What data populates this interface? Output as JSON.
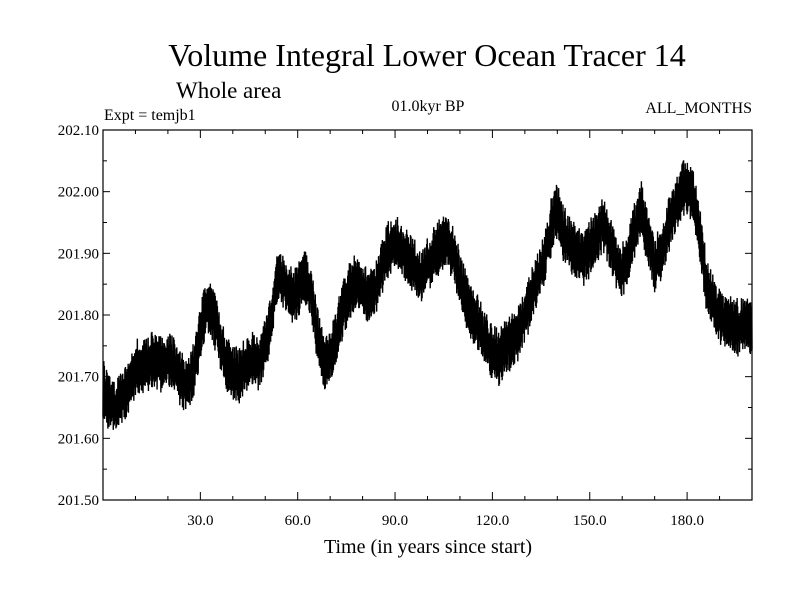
{
  "chart_data": {
    "type": "line",
    "title": "Volume Integral Lower Ocean Tracer 14",
    "subtitle": "Whole area",
    "header_left": "Expt = temjb1",
    "header_center": "01.0kyr BP",
    "header_right": "ALL_MONTHS",
    "xlabel": "Time (in years since start)",
    "ylabel": "",
    "xlim": [
      0,
      200
    ],
    "ylim": [
      201.5,
      202.1
    ],
    "x_ticks": [
      30,
      60,
      90,
      120,
      150,
      180
    ],
    "x_tick_labels": [
      "30.0",
      "60.0",
      "90.0",
      "120.0",
      "150.0",
      "180.0"
    ],
    "y_ticks": [
      201.5,
      201.6,
      201.7,
      201.8,
      201.9,
      202.0,
      202.1
    ],
    "y_tick_labels": [
      "201.50",
      "201.60",
      "201.70",
      "201.80",
      "201.90",
      "202.00",
      "202.10"
    ],
    "series_color": "#000000",
    "series": [
      {
        "name": "tracer14",
        "x": [
          0,
          2,
          4,
          6,
          8,
          10,
          12,
          14,
          16,
          18,
          20,
          22,
          24,
          26,
          28,
          30,
          32,
          34,
          36,
          38,
          40,
          42,
          44,
          46,
          48,
          50,
          52,
          54,
          56,
          58,
          60,
          62,
          64,
          66,
          68,
          70,
          72,
          74,
          76,
          78,
          80,
          82,
          84,
          86,
          88,
          90,
          92,
          94,
          96,
          98,
          100,
          102,
          104,
          106,
          108,
          110,
          112,
          114,
          116,
          118,
          120,
          122,
          124,
          126,
          128,
          130,
          132,
          134,
          136,
          138,
          140,
          142,
          144,
          146,
          148,
          150,
          152,
          154,
          156,
          158,
          160,
          162,
          164,
          166,
          168,
          170,
          172,
          174,
          176,
          178,
          180,
          182,
          184,
          186,
          188,
          190,
          192,
          194,
          196,
          198,
          200
        ],
        "values": [
          201.68,
          201.66,
          201.65,
          201.67,
          201.69,
          201.71,
          201.72,
          201.72,
          201.73,
          201.72,
          201.73,
          201.72,
          201.7,
          201.68,
          201.71,
          201.77,
          201.82,
          201.8,
          201.76,
          201.72,
          201.71,
          201.7,
          201.72,
          201.73,
          201.72,
          201.75,
          201.8,
          201.87,
          201.85,
          201.83,
          201.84,
          201.86,
          201.84,
          201.77,
          201.72,
          201.73,
          201.77,
          201.81,
          201.84,
          201.85,
          201.84,
          201.83,
          201.84,
          201.88,
          201.91,
          201.92,
          201.9,
          201.89,
          201.88,
          201.86,
          201.88,
          201.9,
          201.91,
          201.92,
          201.9,
          201.86,
          201.82,
          201.8,
          201.78,
          201.76,
          201.74,
          201.73,
          201.75,
          201.76,
          201.77,
          201.8,
          201.83,
          201.86,
          201.89,
          201.94,
          201.97,
          201.93,
          201.91,
          201.9,
          201.89,
          201.91,
          201.93,
          201.95,
          201.92,
          201.89,
          201.87,
          201.9,
          201.94,
          201.97,
          201.92,
          201.88,
          201.9,
          201.94,
          201.97,
          202.0,
          202.01,
          201.99,
          201.93,
          201.85,
          201.82,
          201.8,
          201.79,
          201.78,
          201.78,
          201.79,
          201.77
        ]
      }
    ]
  }
}
